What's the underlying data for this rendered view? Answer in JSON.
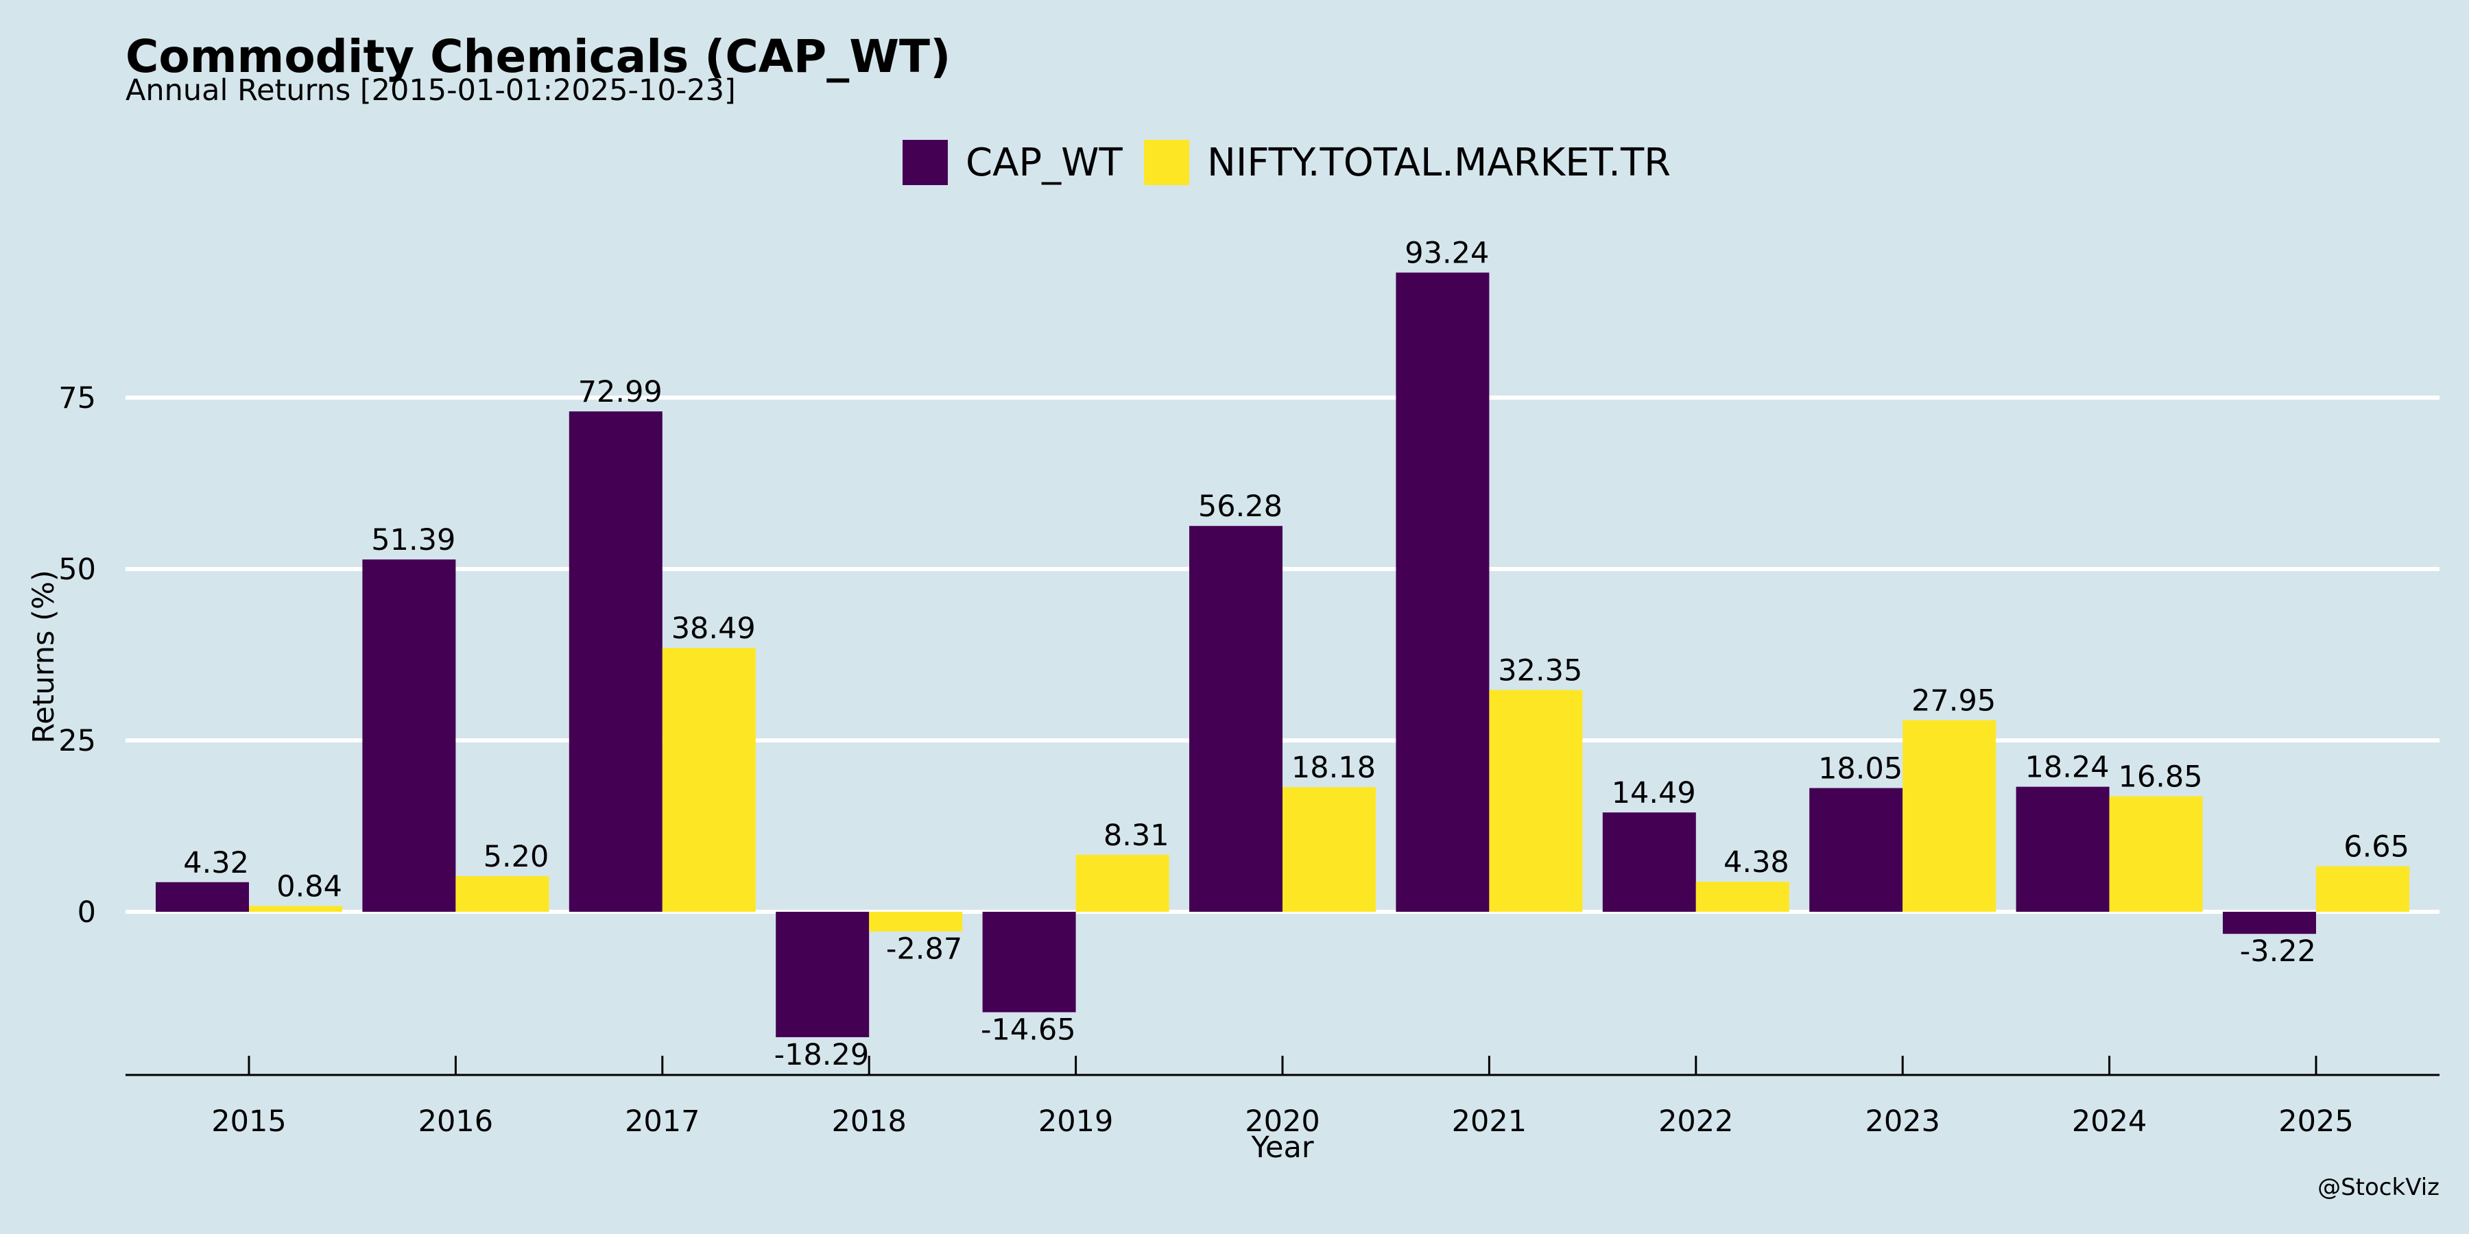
{
  "chart_data": {
    "type": "bar",
    "title": "Commodity Chemicals (CAP_WT)",
    "subtitle": "Annual Returns [2015-01-01:2025-10-23]",
    "xlabel": "Year",
    "ylabel": "Returns (%)",
    "categories": [
      "2015",
      "2016",
      "2017",
      "2018",
      "2019",
      "2020",
      "2021",
      "2022",
      "2023",
      "2024",
      "2025"
    ],
    "series": [
      {
        "name": "CAP_WT",
        "color": "#440154",
        "values": [
          4.32,
          51.39,
          72.99,
          -18.29,
          -14.65,
          56.28,
          93.24,
          14.49,
          18.05,
          18.24,
          -3.22
        ],
        "labels": [
          "4.32",
          "51.39",
          "72.99",
          "-18.29",
          "-14.65",
          "56.28",
          "93.24",
          "14.49",
          "18.05",
          "18.24",
          "-3.22"
        ]
      },
      {
        "name": "NIFTY.TOTAL.MARKET.TR",
        "color": "#fde725",
        "values": [
          0.84,
          5.2,
          38.49,
          -2.87,
          8.31,
          18.18,
          32.35,
          4.38,
          27.95,
          16.85,
          6.65
        ],
        "labels": [
          "0.84",
          "5.20",
          "38.49",
          "-2.87",
          "8.31",
          "18.18",
          "32.35",
          "4.38",
          "27.95",
          "16.85",
          "6.65"
        ]
      }
    ],
    "yticks": [
      0,
      25,
      50,
      75
    ],
    "ytick_labels": [
      "0",
      "25",
      "50",
      "75"
    ],
    "ylim": [
      -24,
      100
    ],
    "grid": true,
    "legend_position": "top-center",
    "background_color": "#d5e5ec",
    "grid_color": "#ffffff"
  },
  "credit": "@StockViz"
}
